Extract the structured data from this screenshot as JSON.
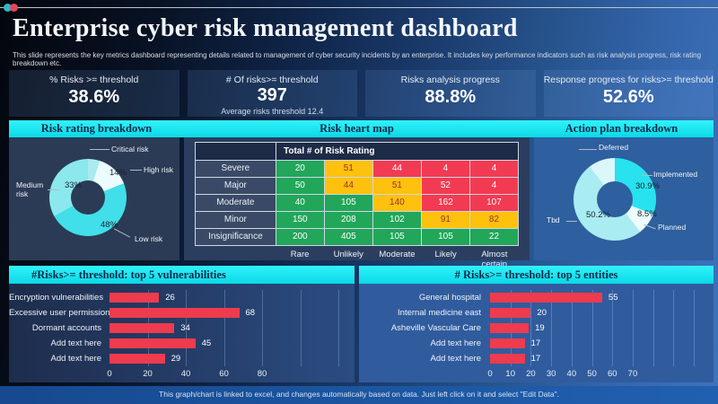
{
  "slide": {
    "title": "Enterprise cyber risk management dashboard",
    "subtitle": "This slide represents the key metrics dashboard representing details related to management of cyber security incidents by an enterprise. It includes key performance indicators such as risk analysis progress, risk rating breakdown etc.",
    "footer": "This graph/chart is linked to excel, and changes automatically based on data. Just left click on it and select \"Edit Data\"."
  },
  "kpis": [
    {
      "label": "% Risks >= threshold",
      "value": "38.6%",
      "sub": ""
    },
    {
      "label": "# Of risks>= threshold",
      "value": "397",
      "sub": "Average risks threshold 12.4"
    },
    {
      "label": "Risks analysis progress",
      "value": "88.8%",
      "sub": ""
    },
    {
      "label": "Response progress for risks>= threshold",
      "value": "52.6%",
      "sub": ""
    }
  ],
  "sections": {
    "risk_rating": "Risk rating breakdown",
    "heat_map": "Risk heart map",
    "action_plan": "Action plan breakdown",
    "vulnerabilities": "#Risks>= threshold: top 5 vulnerabilities",
    "entities": "# Risks>= threshold: top 5 entities"
  },
  "colors": {
    "accent_cyan": "#10e7f2",
    "bar_red": "#ee3b4e",
    "heat_green": "#21a65a",
    "heat_yellow": "#fdc10e",
    "heat_red": "#f23b52"
  },
  "chart_data": [
    {
      "type": "pie",
      "title": "Risk rating breakdown",
      "donut": true,
      "slices": [
        {
          "label": "Critical risk",
          "value": 5,
          "color": "#a9ebef",
          "pct_label": ""
        },
        {
          "label": "High risk",
          "value": 14,
          "color": "#ecfcfd",
          "pct_label": "14%"
        },
        {
          "label": "Low risk",
          "value": 48,
          "color": "#41dfe9",
          "pct_label": "48%"
        },
        {
          "label": "Medium risk",
          "value": 33,
          "color": "#8be8ed",
          "pct_label": "33%"
        }
      ]
    },
    {
      "type": "heatmap",
      "title": "Total # of Risk Rating",
      "rows": [
        "Severe",
        "Major",
        "Moderate",
        "Minor",
        "Insignificance"
      ],
      "cols": [
        "Rare",
        "Unlikely",
        "Moderate",
        "Likely",
        "Almost certain"
      ],
      "values": [
        [
          20,
          51,
          44,
          4,
          4
        ],
        [
          50,
          44,
          51,
          52,
          4
        ],
        [
          40,
          105,
          140,
          162,
          107
        ],
        [
          150,
          208,
          102,
          91,
          82
        ],
        [
          200,
          405,
          105,
          105,
          22
        ]
      ],
      "cell_colors": [
        [
          "g",
          "y",
          "r",
          "r",
          "r"
        ],
        [
          "g",
          "y",
          "y",
          "r",
          "r"
        ],
        [
          "g",
          "g",
          "y",
          "r",
          "r"
        ],
        [
          "g",
          "g",
          "g",
          "y",
          "y"
        ],
        [
          "g",
          "g",
          "g",
          "g",
          "g"
        ]
      ]
    },
    {
      "type": "pie",
      "title": "Action plan breakdown",
      "donut": true,
      "slices": [
        {
          "label": "Implemented",
          "value": 30.9,
          "color": "#29e2ef",
          "pct_label": "30.9%"
        },
        {
          "label": "Planned",
          "value": 8.5,
          "color": "#eefcfd",
          "pct_label": "8.5%"
        },
        {
          "label": "Tbd",
          "value": 50.2,
          "color": "#a9ecf2",
          "pct_label": "50.2%"
        },
        {
          "label": "Deferred",
          "value": 10.4,
          "color": "#dcf7fa",
          "pct_label": ""
        }
      ]
    },
    {
      "type": "bar",
      "title": "#Risks>= threshold: top 5 vulnerabilities",
      "categories": [
        "Encryption vulnerabilities",
        "Excessive user permissions",
        "Dormant accounts",
        "Add text here",
        "Add text here"
      ],
      "values": [
        26,
        68,
        34,
        45,
        29
      ],
      "ticks": [
        0,
        20,
        40,
        60,
        80
      ],
      "gridlines": [
        20,
        40,
        60,
        80,
        100,
        120
      ],
      "xmax": 128,
      "bar_color": "#ee3b4e"
    },
    {
      "type": "bar",
      "title": "# Risks>= threshold: top 5 entities",
      "categories": [
        "General hospital",
        "Internal medicine east",
        "Asheville Vascular Care",
        "Add text here",
        "Add text here"
      ],
      "values": [
        55,
        20,
        19,
        17,
        17
      ],
      "ticks": [
        0,
        10,
        20,
        30,
        40,
        50,
        60,
        70
      ],
      "gridlines": [
        10,
        20,
        30,
        40,
        50,
        60,
        70,
        80,
        90,
        100
      ],
      "xmax": 107,
      "bar_color": "#ee3b4e"
    }
  ]
}
